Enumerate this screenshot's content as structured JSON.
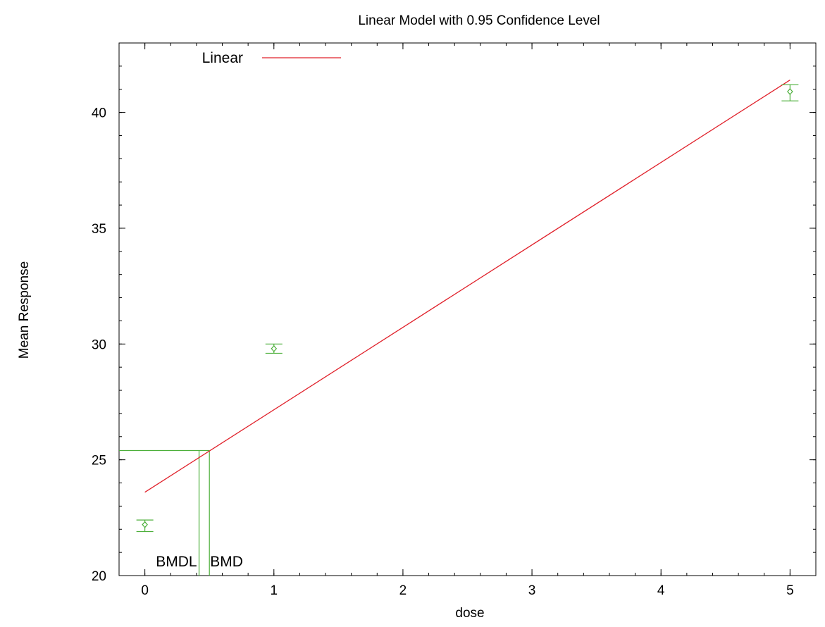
{
  "chart_data": {
    "type": "line",
    "title": "Linear Model with 0.95 Confidence Level",
    "xlabel": "dose",
    "ylabel": "Mean Response",
    "xlim": [
      -0.2,
      5.2
    ],
    "ylim": [
      20,
      43
    ],
    "x_ticks": [
      0,
      1,
      2,
      3,
      4,
      5
    ],
    "y_ticks": [
      20,
      25,
      30,
      35,
      40
    ],
    "grid": false,
    "legend": {
      "position": "top-left",
      "entries": [
        {
          "label": "Linear",
          "color": "#e0202a"
        }
      ]
    },
    "series": [
      {
        "name": "Linear",
        "kind": "line",
        "color": "#e0202a",
        "x": [
          0,
          5
        ],
        "y": [
          23.6,
          41.4
        ]
      }
    ],
    "observed": {
      "color": "#4caf3a",
      "points": [
        {
          "x": 0,
          "y": 22.2,
          "lower": 21.9,
          "upper": 22.4
        },
        {
          "x": 1,
          "y": 29.8,
          "lower": 29.6,
          "upper": 30.0
        },
        {
          "x": 5,
          "y": 40.9,
          "lower": 40.5,
          "upper": 41.2
        }
      ]
    },
    "bmd": {
      "color": "#4caf3a",
      "bmdl": 0.42,
      "bmd": 0.5,
      "response": 25.4,
      "bmdl_label": "BMDL",
      "bmd_label": "BMD"
    }
  }
}
